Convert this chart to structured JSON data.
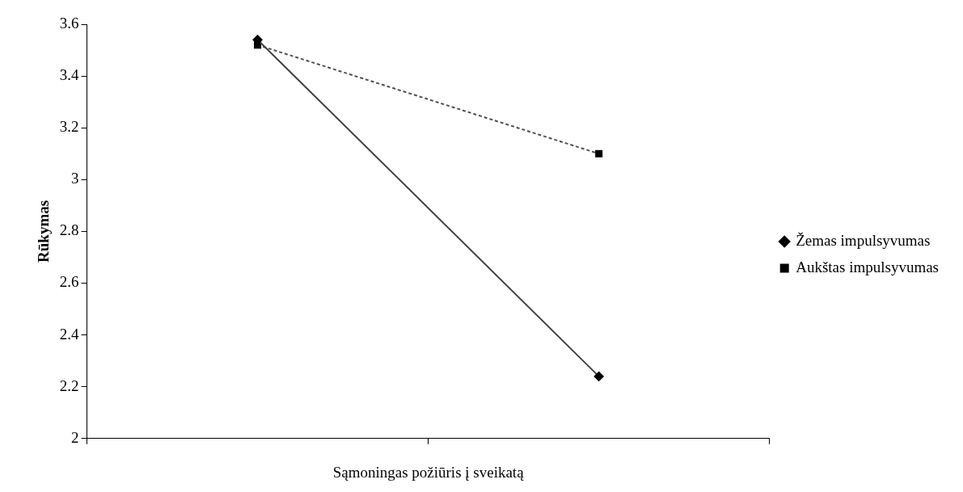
{
  "chart_data": {
    "type": "line",
    "xlabel": "Sąmoningas požiūris į sveikatą",
    "ylabel": "Rūkymas",
    "categories": [
      null,
      null
    ],
    "series": [
      {
        "name": "Žemas impulsyvumas",
        "color": "#404040",
        "values": [
          3.54,
          2.24
        ],
        "marker": "diamond",
        "line_style": "solid"
      },
      {
        "name": "Aukštas impulsyvumas",
        "color": "#505050",
        "values": [
          3.52,
          3.1
        ],
        "marker": "square",
        "line_style": "dashed"
      }
    ],
    "ylim": [
      2,
      3.6
    ],
    "yticks": [
      2,
      {
        "value": 2.2,
        "label": "2.2"
      },
      {
        "value": 2.4,
        "label": "2.4"
      },
      {
        "value": 2.6,
        "label": "2.6"
      },
      {
        "value": 2.8,
        "label": "2.8"
      },
      3,
      {
        "value": 3.2,
        "label": "3.2"
      },
      {
        "value": 3.4,
        "label": "3.4"
      },
      {
        "value": 3.6,
        "label": "3.6"
      }
    ],
    "grid": false,
    "legend": "right"
  }
}
